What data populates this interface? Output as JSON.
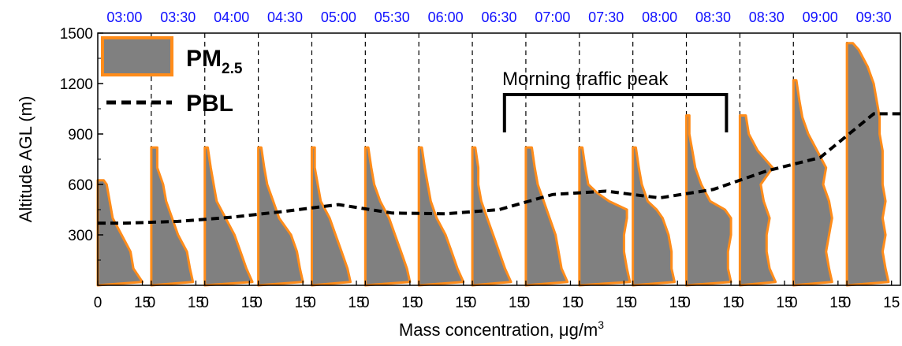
{
  "chart_data": {
    "type": "area",
    "xlabel_text": "Mass concentration, ",
    "xlabel_unit": "μg/m",
    "xlabel_exp": "3",
    "ylabel": "Altitude AGL (m)",
    "ylim": [
      0,
      1500
    ],
    "yticks": [
      300,
      600,
      900,
      1200,
      1500
    ],
    "panel_xlim": [
      0,
      18
    ],
    "panel_ticks": [
      0,
      15
    ],
    "legend": {
      "pm_label": "PM",
      "pm_sub": "2.5",
      "pbl_label": "PBL",
      "placement": "top-left"
    },
    "annotation": {
      "text": "Morning traffic peak",
      "from_panel": 7,
      "to_panel": 11
    },
    "colors": {
      "area_fill": "#808080",
      "area_edge": "#ff8c1a",
      "time_label": "#1010ff",
      "pbl": "#000000",
      "divider": "#000000"
    },
    "times": [
      "03:00",
      "03:30",
      "04:00",
      "04:30",
      "05:00",
      "05:30",
      "06:00",
      "06:30",
      "07:00",
      "07:30",
      "08:00",
      "08:30",
      "08:30",
      "09:00",
      "09:30"
    ],
    "panel_tick_labels": [
      "0",
      "15",
      "0",
      "15",
      "0",
      "15",
      "0",
      "15",
      "0",
      "15",
      "0",
      "15",
      "0",
      "15",
      "0",
      "15",
      "0",
      "15",
      "0",
      "15",
      "0",
      "15",
      "0",
      "15",
      "0",
      "15",
      "0",
      "15",
      "0",
      "15"
    ],
    "pbl_series": {
      "name": "PBL",
      "x": [
        "03:00",
        "03:30",
        "04:00",
        "04:30",
        "05:00",
        "05:30",
        "06:00",
        "06:30",
        "07:00",
        "07:30",
        "08:00",
        "08:30",
        "08:30",
        "09:00",
        "09:30"
      ],
      "heights_m": [
        370,
        380,
        405,
        440,
        480,
        430,
        425,
        450,
        540,
        560,
        520,
        570,
        680,
        760,
        1020
      ]
    },
    "profiles": [
      {
        "time": "03:00",
        "top_m": 625,
        "points": [
          [
            0,
            0
          ],
          [
            15,
            20
          ],
          [
            12,
            100
          ],
          [
            11,
            200
          ],
          [
            8,
            300
          ],
          [
            5,
            400
          ],
          [
            4,
            500
          ],
          [
            3,
            600
          ],
          [
            2,
            625
          ]
        ]
      },
      {
        "time": "03:30",
        "top_m": 820,
        "points": [
          [
            0,
            0
          ],
          [
            14,
            20
          ],
          [
            13,
            100
          ],
          [
            12,
            200
          ],
          [
            9,
            300
          ],
          [
            7,
            400
          ],
          [
            5,
            500
          ],
          [
            4,
            600
          ],
          [
            2,
            700
          ],
          [
            2,
            820
          ]
        ]
      },
      {
        "time": "04:00",
        "top_m": 820,
        "points": [
          [
            0,
            0
          ],
          [
            16,
            20
          ],
          [
            14,
            100
          ],
          [
            12,
            200
          ],
          [
            10,
            300
          ],
          [
            7,
            400
          ],
          [
            4,
            500
          ],
          [
            3,
            600
          ],
          [
            2,
            700
          ],
          [
            1,
            820
          ]
        ]
      },
      {
        "time": "04:30",
        "top_m": 820,
        "points": [
          [
            0,
            0
          ],
          [
            15,
            20
          ],
          [
            14,
            100
          ],
          [
            13,
            200
          ],
          [
            11,
            300
          ],
          [
            7,
            400
          ],
          [
            5,
            500
          ],
          [
            3,
            600
          ],
          [
            2,
            700
          ],
          [
            1,
            820
          ]
        ]
      },
      {
        "time": "05:00",
        "top_m": 820,
        "points": [
          [
            0,
            0
          ],
          [
            13,
            20
          ],
          [
            12,
            100
          ],
          [
            10,
            200
          ],
          [
            8,
            300
          ],
          [
            6,
            400
          ],
          [
            3,
            500
          ],
          [
            2,
            600
          ],
          [
            1,
            700
          ],
          [
            1,
            820
          ]
        ]
      },
      {
        "time": "05:30",
        "top_m": 820,
        "points": [
          [
            0,
            0
          ],
          [
            15,
            20
          ],
          [
            14,
            100
          ],
          [
            12,
            200
          ],
          [
            10,
            300
          ],
          [
            8,
            400
          ],
          [
            5,
            500
          ],
          [
            3,
            600
          ],
          [
            2,
            700
          ],
          [
            1,
            820
          ]
        ]
      },
      {
        "time": "06:00",
        "top_m": 820,
        "points": [
          [
            0,
            0
          ],
          [
            15,
            20
          ],
          [
            13,
            100
          ],
          [
            11,
            200
          ],
          [
            9,
            300
          ],
          [
            6,
            400
          ],
          [
            4,
            500
          ],
          [
            3,
            600
          ],
          [
            2,
            700
          ],
          [
            1,
            820
          ]
        ]
      },
      {
        "time": "06:30",
        "top_m": 820,
        "points": [
          [
            0,
            0
          ],
          [
            13,
            20
          ],
          [
            11,
            100
          ],
          [
            9,
            200
          ],
          [
            7,
            300
          ],
          [
            5,
            400
          ],
          [
            3,
            500
          ],
          [
            2,
            600
          ],
          [
            2,
            700
          ],
          [
            1,
            820
          ]
        ]
      },
      {
        "time": "07:00",
        "top_m": 820,
        "points": [
          [
            0,
            0
          ],
          [
            14,
            20
          ],
          [
            12,
            100
          ],
          [
            11,
            200
          ],
          [
            10,
            300
          ],
          [
            8,
            400
          ],
          [
            6,
            500
          ],
          [
            4,
            600
          ],
          [
            3,
            700
          ],
          [
            2,
            820
          ]
        ]
      },
      {
        "time": "07:30",
        "top_m": 820,
        "points": [
          [
            0,
            0
          ],
          [
            17,
            20
          ],
          [
            16,
            100
          ],
          [
            15,
            200
          ],
          [
            15,
            300
          ],
          [
            16,
            400
          ],
          [
            16,
            450
          ],
          [
            10,
            500
          ],
          [
            6,
            550
          ],
          [
            3,
            600
          ],
          [
            2,
            700
          ],
          [
            1,
            820
          ]
        ]
      },
      {
        "time": "08:00",
        "top_m": 820,
        "points": [
          [
            0,
            0
          ],
          [
            14,
            20
          ],
          [
            13,
            100
          ],
          [
            13,
            200
          ],
          [
            12,
            300
          ],
          [
            10,
            400
          ],
          [
            8,
            450
          ],
          [
            5,
            500
          ],
          [
            3,
            600
          ],
          [
            2,
            700
          ],
          [
            1,
            820
          ]
        ]
      },
      {
        "time": "08:30",
        "top_m": 1010,
        "points": [
          [
            0,
            0
          ],
          [
            15,
            20
          ],
          [
            14,
            100
          ],
          [
            14,
            200
          ],
          [
            15,
            300
          ],
          [
            15,
            400
          ],
          [
            13,
            450
          ],
          [
            8,
            500
          ],
          [
            5,
            600
          ],
          [
            3,
            700
          ],
          [
            2,
            800
          ],
          [
            1,
            900
          ],
          [
            1,
            1010
          ]
        ]
      },
      {
        "time": "08:30",
        "top_m": 1010,
        "points": [
          [
            0,
            0
          ],
          [
            12,
            20
          ],
          [
            10,
            100
          ],
          [
            9,
            200
          ],
          [
            9,
            300
          ],
          [
            10,
            400
          ],
          [
            8,
            500
          ],
          [
            7,
            600
          ],
          [
            11,
            700
          ],
          [
            6,
            800
          ],
          [
            3,
            900
          ],
          [
            2,
            1010
          ]
        ]
      },
      {
        "time": "09:00",
        "top_m": 1220,
        "points": [
          [
            0,
            0
          ],
          [
            13,
            20
          ],
          [
            12,
            100
          ],
          [
            11,
            200
          ],
          [
            12,
            300
          ],
          [
            13,
            400
          ],
          [
            12,
            500
          ],
          [
            10,
            600
          ],
          [
            11,
            700
          ],
          [
            8,
            800
          ],
          [
            5,
            900
          ],
          [
            3,
            1000
          ],
          [
            2,
            1100
          ],
          [
            1,
            1220
          ]
        ]
      },
      {
        "time": "09:30",
        "top_m": 1440,
        "points": [
          [
            0,
            0
          ],
          [
            14,
            20
          ],
          [
            13,
            100
          ],
          [
            12,
            200
          ],
          [
            13,
            300
          ],
          [
            12,
            400
          ],
          [
            13,
            500
          ],
          [
            12,
            600
          ],
          [
            12,
            700
          ],
          [
            12,
            800
          ],
          [
            11,
            900
          ],
          [
            11,
            1000
          ],
          [
            10,
            1100
          ],
          [
            9,
            1200
          ],
          [
            7,
            1300
          ],
          [
            4,
            1400
          ],
          [
            2,
            1440
          ]
        ]
      }
    ]
  }
}
